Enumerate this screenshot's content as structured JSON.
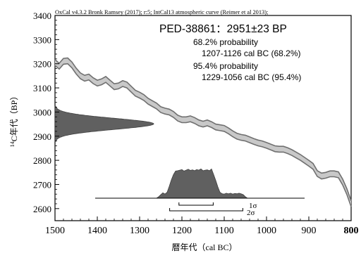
{
  "chart_data": {
    "type": "line",
    "header": "OxCal v4.3.2 Bronk Ramsey (2017); r:5; IntCal13 atmospheric curve (Reimer et al 2013);",
    "sample_label": "PED-38861：2951±23 BP",
    "annotations": [
      "68.2% probability",
      "1207-1126 cal BC (68.2%)",
      "95.4% probability",
      "1229-1056 cal BC (95.4%)"
    ],
    "xlabel": "暦年代（cal BC）",
    "ylabel": "14C年代（BP）",
    "y_label_sup": "14",
    "y_label_main": "C年代（BP）",
    "xlim": [
      1500,
      800
    ],
    "ylim": [
      2550,
      3400
    ],
    "x_ticks": [
      1500,
      1400,
      1300,
      1200,
      1100,
      1000,
      900,
      800
    ],
    "y_ticks": [
      2600,
      2700,
      2800,
      2900,
      3000,
      3100,
      3200,
      3300,
      3400
    ],
    "sigma_labels": [
      "1σ",
      "2σ"
    ],
    "calibration_curve": {
      "x": [
        1500,
        1490,
        1480,
        1470,
        1460,
        1450,
        1440,
        1430,
        1420,
        1410,
        1400,
        1390,
        1380,
        1370,
        1360,
        1350,
        1340,
        1330,
        1320,
        1310,
        1300,
        1290,
        1280,
        1270,
        1260,
        1250,
        1240,
        1230,
        1220,
        1210,
        1200,
        1190,
        1180,
        1170,
        1160,
        1150,
        1140,
        1130,
        1120,
        1110,
        1100,
        1090,
        1080,
        1070,
        1060,
        1050,
        1040,
        1030,
        1020,
        1010,
        1000,
        990,
        980,
        970,
        960,
        950,
        940,
        930,
        920,
        910,
        900,
        890,
        880,
        870,
        860,
        850,
        840,
        830,
        820,
        810,
        800
      ],
      "y": [
        3205,
        3190,
        3210,
        3212,
        3195,
        3170,
        3150,
        3140,
        3145,
        3130,
        3120,
        3125,
        3135,
        3120,
        3105,
        3108,
        3118,
        3112,
        3095,
        3078,
        3070,
        3060,
        3045,
        3035,
        3025,
        3010,
        3004,
        3000,
        2990,
        2975,
        2968,
        2968,
        2972,
        2965,
        2955,
        2950,
        2955,
        2948,
        2938,
        2935,
        2932,
        2922,
        2910,
        2900,
        2895,
        2892,
        2885,
        2878,
        2872,
        2868,
        2862,
        2855,
        2848,
        2846,
        2846,
        2840,
        2832,
        2822,
        2812,
        2800,
        2788,
        2775,
        2745,
        2735,
        2738,
        2744,
        2744,
        2740,
        2710,
        2670,
        2620
      ],
      "band_halfwidth": 12
    },
    "measured_distribution": {
      "mean_bp": 2951,
      "sigma_bp": 23
    },
    "calibrated_distribution": {
      "x": [
        1260,
        1255,
        1250,
        1245,
        1240,
        1235,
        1230,
        1225,
        1220,
        1215,
        1210,
        1205,
        1200,
        1195,
        1190,
        1185,
        1180,
        1175,
        1170,
        1165,
        1160,
        1155,
        1150,
        1145,
        1140,
        1135,
        1130,
        1125,
        1120,
        1115,
        1110,
        1105,
        1100,
        1095,
        1090,
        1085,
        1080,
        1075,
        1070,
        1065,
        1060,
        1055,
        1050,
        1045
      ],
      "density": [
        0.0,
        0.05,
        0.12,
        0.18,
        0.14,
        0.2,
        0.4,
        0.62,
        0.8,
        0.92,
        0.93,
        0.95,
        0.97,
        0.92,
        0.95,
        0.98,
        0.94,
        0.96,
        0.93,
        0.97,
        0.95,
        0.99,
        0.93,
        0.95,
        0.96,
        0.93,
        0.99,
        0.8,
        0.6,
        0.38,
        0.2,
        0.15,
        0.14,
        0.17,
        0.15,
        0.17,
        0.14,
        0.16,
        0.15,
        0.17,
        0.15,
        0.12,
        0.05,
        0.0
      ]
    },
    "ranges": {
      "one_sigma": [
        [
          1207,
          1126
        ]
      ],
      "two_sigma": [
        [
          1229,
          1056
        ]
      ]
    },
    "colors": {
      "curve_fill": "#c8c8c8",
      "curve_edge": "#707070",
      "distribution_fill": "#606060",
      "distribution_edge": "#404040",
      "axes": "#000000"
    }
  }
}
